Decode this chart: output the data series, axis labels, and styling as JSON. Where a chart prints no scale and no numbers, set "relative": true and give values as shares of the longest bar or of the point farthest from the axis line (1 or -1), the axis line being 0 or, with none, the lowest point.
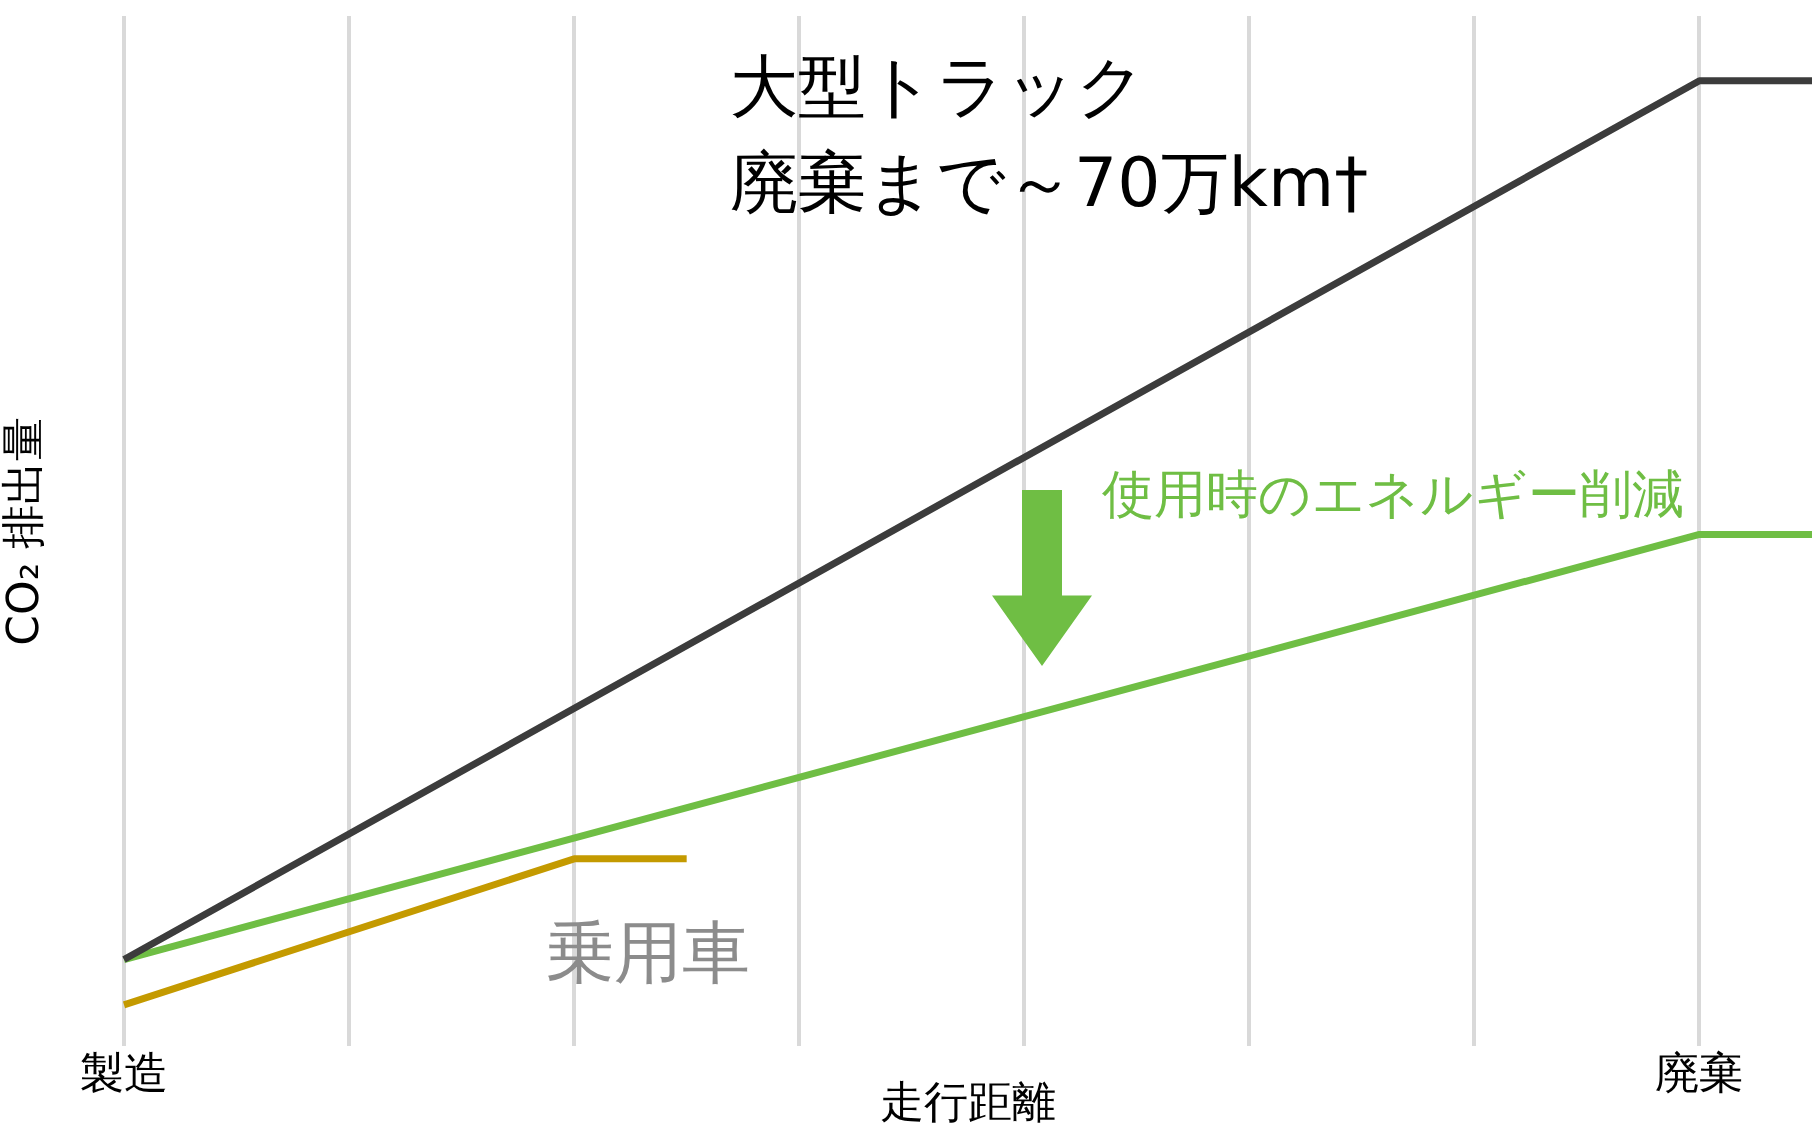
{
  "chart_data": {
    "type": "line",
    "relative": true,
    "xlabel": "走行距離",
    "ylabel": "CO₂ 排出量",
    "grid": "x",
    "legend": false,
    "marker": "none",
    "line_style": "solid",
    "categories": [
      "製造",
      null,
      null,
      null,
      null,
      null,
      null,
      null,
      null,
      null,
      null,
      null,
      null,
      null,
      "廃棄",
      null
    ],
    "series": [
      {
        "color": "#3c3c3c",
        "values": [
          0.049,
          null,
          null,
          null,
          null,
          null,
          null,
          null,
          null,
          null,
          null,
          null,
          null,
          null,
          1,
          1
        ]
      },
      {
        "color": "#6fbe44",
        "values": [
          0.049,
          null,
          null,
          null,
          null,
          null,
          null,
          null,
          null,
          null,
          null,
          null,
          null,
          null,
          0.509,
          0.509
        ]
      },
      {
        "name": "乗用車",
        "color": "#c49a00",
        "values": [
          0,
          null,
          null,
          null,
          0.158,
          0.158,
          null,
          null,
          null,
          null,
          null,
          null,
          null,
          null,
          null,
          null
        ]
      }
    ],
    "annotations": [
      "大型トラック",
      "廃棄まで～70万km†",
      "使用時のエネルギー削減"
    ]
  }
}
